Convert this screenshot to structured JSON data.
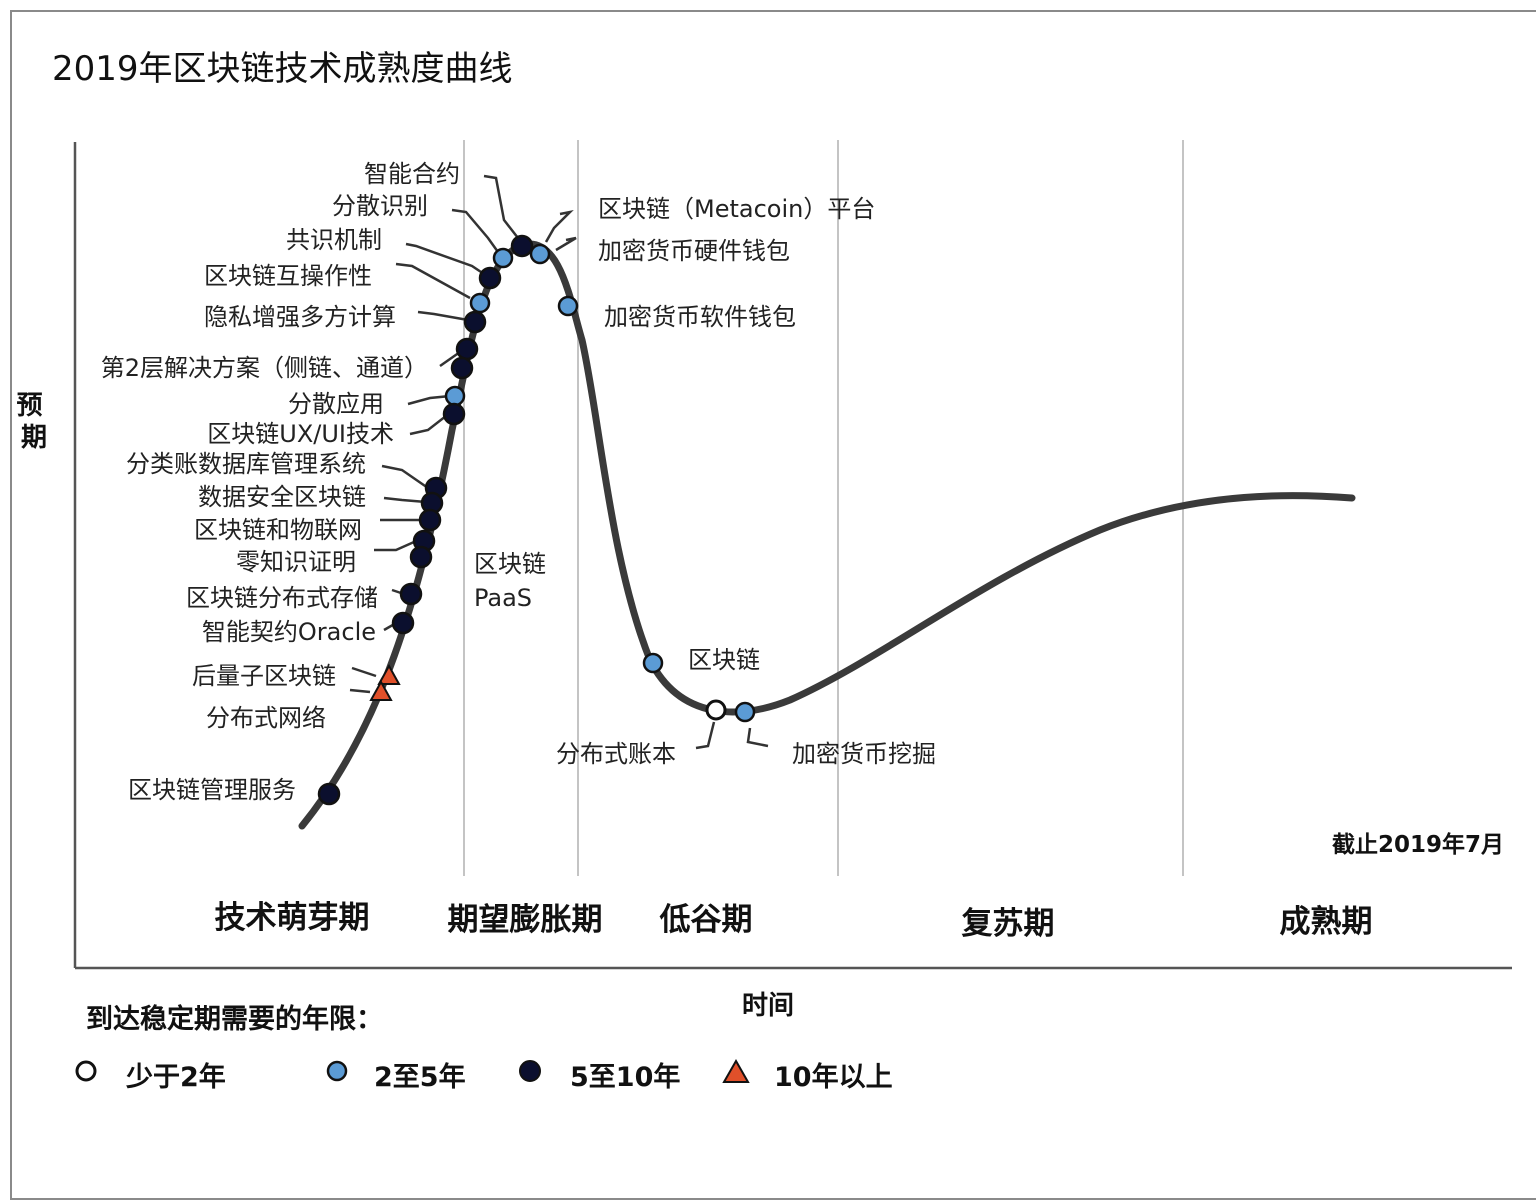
{
  "title": "2019年区块链技术成熟度曲线",
  "y_axis_label": "预期",
  "x_axis_label": "时间",
  "as_of": "截止2019年7月",
  "phases": [
    "技术萌芽期",
    "期望膨胀期",
    "低谷期",
    "复苏期",
    "成熟期"
  ],
  "legend": {
    "title": "到达稳定期需要的年限：",
    "items": [
      {
        "key": "lt2",
        "label": "少于2年",
        "marker": "circle",
        "color": "#ffffff"
      },
      {
        "key": "2to5",
        "label": "2至5年",
        "marker": "circle",
        "color": "#5b9bd5"
      },
      {
        "key": "5to10",
        "label": "5至10年",
        "marker": "circle",
        "color": "#0b0f2e"
      },
      {
        "key": "gt10",
        "label": "10年以上",
        "marker": "triangle",
        "color": "#e0502a"
      }
    ]
  },
  "colors": {
    "curve": "#3a3a3a",
    "grid": "#c4c4c4",
    "axis": "#555555",
    "leader": "#333333"
  },
  "chart_data": {
    "type": "hype-cycle",
    "technologies": [
      {
        "name": "智能合约",
        "category": "5to10"
      },
      {
        "name": "分散识别",
        "category": "2to5"
      },
      {
        "name": "共识机制",
        "category": "5to10"
      },
      {
        "name": "区块链互操作性",
        "category": "2to5"
      },
      {
        "name": "隐私增强多方计算",
        "category": "5to10"
      },
      {
        "name": "第2层解决方案（侧链、通道）",
        "category": "5to10"
      },
      {
        "name": "分散应用",
        "category": "5to10"
      },
      {
        "name": "区块链UX/UI技术",
        "category": "2to5"
      },
      {
        "name": "分类账数据库管理系统",
        "category": "5to10"
      },
      {
        "name": "数据安全区块链",
        "category": "5to10"
      },
      {
        "name": "区块链和物联网",
        "category": "5to10"
      },
      {
        "name": "零知识证明",
        "category": "5to10"
      },
      {
        "name": "区块链分布式存储",
        "category": "5to10"
      },
      {
        "name": "智能契约Oracle",
        "category": "5to10"
      },
      {
        "name": "后量子区块链",
        "category": "gt10"
      },
      {
        "name": "分布式网络",
        "category": "gt10"
      },
      {
        "name": "区块链管理服务",
        "category": "5to10"
      },
      {
        "name": "区块链PaaS",
        "label_lines": [
          "区块链",
          "PaaS"
        ],
        "category": "5to10"
      },
      {
        "name": "区块链（Metacoin）平台",
        "category": "2to5"
      },
      {
        "name": "加密货币硬件钱包",
        "category": "2to5"
      },
      {
        "name": "加密货币软件钱包",
        "category": "2to5"
      },
      {
        "name": "区块链",
        "category": "2to5"
      },
      {
        "name": "分布式账本",
        "category": "lt2"
      },
      {
        "name": "加密货币挖掘",
        "category": "2to5"
      }
    ]
  }
}
